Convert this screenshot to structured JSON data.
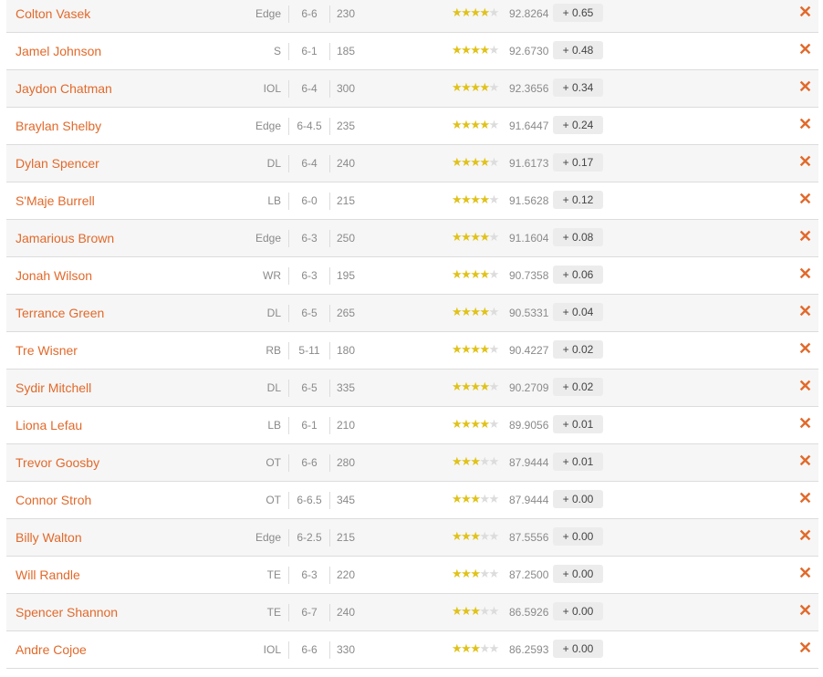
{
  "accent": "#e2692a",
  "star_color": "#e0c21a",
  "players": [
    {
      "name": "Colton Vasek",
      "pos": "Edge",
      "height": "6-6",
      "weight": "230",
      "stars": 4,
      "rating": "92.8264",
      "change": "+ 0.65"
    },
    {
      "name": "Jamel Johnson",
      "pos": "S",
      "height": "6-1",
      "weight": "185",
      "stars": 4,
      "rating": "92.6730",
      "change": "+ 0.48"
    },
    {
      "name": "Jaydon Chatman",
      "pos": "IOL",
      "height": "6-4",
      "weight": "300",
      "stars": 4,
      "rating": "92.3656",
      "change": "+ 0.34"
    },
    {
      "name": "Braylan Shelby",
      "pos": "Edge",
      "height": "6-4.5",
      "weight": "235",
      "stars": 4,
      "rating": "91.6447",
      "change": "+ 0.24"
    },
    {
      "name": "Dylan Spencer",
      "pos": "DL",
      "height": "6-4",
      "weight": "240",
      "stars": 4,
      "rating": "91.6173",
      "change": "+ 0.17"
    },
    {
      "name": "S'Maje Burrell",
      "pos": "LB",
      "height": "6-0",
      "weight": "215",
      "stars": 4,
      "rating": "91.5628",
      "change": "+ 0.12"
    },
    {
      "name": "Jamarious Brown",
      "pos": "Edge",
      "height": "6-3",
      "weight": "250",
      "stars": 4,
      "rating": "91.1604",
      "change": "+ 0.08"
    },
    {
      "name": "Jonah Wilson",
      "pos": "WR",
      "height": "6-3",
      "weight": "195",
      "stars": 4,
      "rating": "90.7358",
      "change": "+ 0.06"
    },
    {
      "name": "Terrance Green",
      "pos": "DL",
      "height": "6-5",
      "weight": "265",
      "stars": 4,
      "rating": "90.5331",
      "change": "+ 0.04"
    },
    {
      "name": "Tre Wisner",
      "pos": "RB",
      "height": "5-11",
      "weight": "180",
      "stars": 4,
      "rating": "90.4227",
      "change": "+ 0.02"
    },
    {
      "name": "Sydir Mitchell",
      "pos": "DL",
      "height": "6-5",
      "weight": "335",
      "stars": 4,
      "rating": "90.2709",
      "change": "+ 0.02"
    },
    {
      "name": "Liona Lefau",
      "pos": "LB",
      "height": "6-1",
      "weight": "210",
      "stars": 4,
      "rating": "89.9056",
      "change": "+ 0.01"
    },
    {
      "name": "Trevor Goosby",
      "pos": "OT",
      "height": "6-6",
      "weight": "280",
      "stars": 3,
      "rating": "87.9444",
      "change": "+ 0.01"
    },
    {
      "name": "Connor Stroh",
      "pos": "OT",
      "height": "6-6.5",
      "weight": "345",
      "stars": 3,
      "rating": "87.9444",
      "change": "+ 0.00"
    },
    {
      "name": "Billy Walton",
      "pos": "Edge",
      "height": "6-2.5",
      "weight": "215",
      "stars": 3,
      "rating": "87.5556",
      "change": "+ 0.00"
    },
    {
      "name": "Will Randle",
      "pos": "TE",
      "height": "6-3",
      "weight": "220",
      "stars": 3,
      "rating": "87.2500",
      "change": "+ 0.00"
    },
    {
      "name": "Spencer Shannon",
      "pos": "TE",
      "height": "6-7",
      "weight": "240",
      "stars": 3,
      "rating": "86.5926",
      "change": "+ 0.00"
    },
    {
      "name": "Andre Cojoe",
      "pos": "IOL",
      "height": "6-6",
      "weight": "330",
      "stars": 3,
      "rating": "86.2593",
      "change": "+ 0.00"
    }
  ]
}
